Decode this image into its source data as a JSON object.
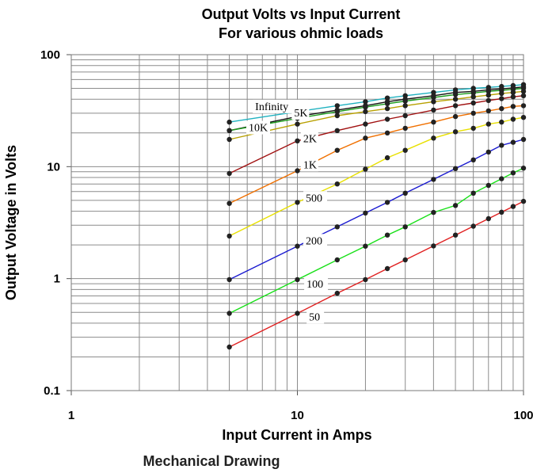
{
  "chart_data": {
    "type": "line",
    "title": "Output Volts vs Input Current",
    "subtitle": "For various ohmic loads",
    "xlabel": "Input Current in Amps",
    "ylabel": "Output Voltage in Volts",
    "x_scale": "log",
    "y_scale": "log",
    "xlim": [
      1,
      100
    ],
    "ylim": [
      0.1,
      100
    ],
    "x_ticks": [
      "1",
      "10",
      "100"
    ],
    "y_ticks": [
      "0.1",
      "1",
      "10",
      "100"
    ],
    "grid": true,
    "legend": "inline labels",
    "x": [
      5,
      10,
      15,
      20,
      25,
      30,
      40,
      50,
      60,
      70,
      80,
      90,
      100
    ],
    "series": [
      {
        "name": "Infinity",
        "color": "#20b2c0",
        "values": [
          25,
          31,
          35,
          38,
          41,
          43,
          46,
          48.5,
          50,
          51,
          52,
          53,
          54
        ]
      },
      {
        "name": "5K",
        "color": "#111111",
        "values": [
          21,
          28,
          32,
          35,
          38,
          40,
          43,
          46,
          47,
          48.5,
          49.5,
          50.5,
          51.5
        ]
      },
      {
        "name": "10K",
        "color": "#1a9c1a",
        "values": [
          21,
          27,
          31,
          34,
          36.5,
          38.5,
          41.5,
          44,
          45.5,
          47,
          48,
          49,
          50
        ]
      },
      {
        "name": "2K",
        "color": "#b8a000",
        "values": [
          17.5,
          24,
          28.5,
          31,
          33,
          35,
          38,
          40,
          42,
          43.5,
          45,
          46,
          47
        ]
      },
      {
        "name": "1K",
        "color": "#a01010",
        "values": [
          8.7,
          17,
          21,
          24,
          26.5,
          28.5,
          32,
          35,
          37,
          39,
          40.5,
          42,
          43
        ]
      },
      {
        "name": "500",
        "color": "#f07000",
        "values": [
          4.7,
          9.2,
          14,
          18,
          20,
          22,
          25,
          28,
          30,
          31.5,
          33,
          34.5,
          35
        ]
      },
      {
        "name": "200",
        "color": "#e8e000",
        "values": [
          2.4,
          4.8,
          7,
          9.5,
          12,
          14,
          18,
          20.5,
          22,
          24,
          25,
          26.5,
          27.5
        ]
      },
      {
        "name": "100",
        "color": "#1a1ad0",
        "values": [
          0.98,
          1.95,
          2.9,
          3.85,
          4.8,
          5.8,
          7.7,
          9.6,
          11.5,
          13.5,
          15.5,
          16.5,
          17.5
        ]
      },
      {
        "name": "50",
        "color": "#18e018",
        "values": [
          0.49,
          0.98,
          1.47,
          1.95,
          2.45,
          2.9,
          3.9,
          4.5,
          5.8,
          6.8,
          7.8,
          8.8,
          9.7
        ]
      },
      {
        "name": "",
        "color": "#e02020",
        "values": [
          0.245,
          0.49,
          0.74,
          0.98,
          1.23,
          1.47,
          1.96,
          2.45,
          2.94,
          3.43,
          3.92,
          4.41,
          4.9
        ]
      }
    ]
  },
  "caption": "Mechanical Drawing",
  "style": {
    "grid_color": "#8c8c8c",
    "marker_color": "#222222",
    "background": "#ffffff"
  }
}
